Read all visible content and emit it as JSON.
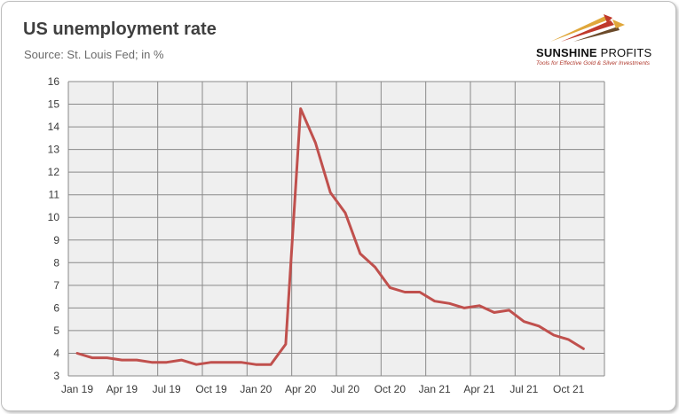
{
  "header": {
    "title": "US unemployment rate",
    "subtitle": "Source: St. Louis Fed; in %"
  },
  "logo": {
    "name_part1": "SUNSHINE",
    "name_part2": "PROFITS",
    "tagline": "Tools for Effective Gold & Silver Investments",
    "colors": {
      "gold": "#e0a73a",
      "red": "#c0392b",
      "dark": "#6b4a2a"
    }
  },
  "colors": {
    "plot_bg": "#efefef",
    "grid": "#8a8a8a",
    "line": "#c0504d"
  },
  "chart_data": {
    "type": "line",
    "title": "US unemployment rate",
    "subtitle": "Source: St. Louis Fed; in %",
    "xlabel": "",
    "ylabel": "",
    "ylim": [
      3,
      16
    ],
    "yticks": [
      3,
      4,
      5,
      6,
      7,
      8,
      9,
      10,
      11,
      12,
      13,
      14,
      15,
      16
    ],
    "grid": true,
    "xtick_labels": [
      "Jan 19",
      "Apr 19",
      "Jul 19",
      "Oct 19",
      "Jan 20",
      "Apr 20",
      "Jul 20",
      "Oct 20",
      "Jan 21",
      "Apr 21",
      "Jul 21",
      "Oct 21"
    ],
    "x": [
      "Jan 19",
      "Feb 19",
      "Mar 19",
      "Apr 19",
      "May 19",
      "Jun 19",
      "Jul 19",
      "Aug 19",
      "Sep 19",
      "Oct 19",
      "Nov 19",
      "Dec 19",
      "Jan 20",
      "Feb 20",
      "Mar 20",
      "Apr 20",
      "May 20",
      "Jun 20",
      "Jul 20",
      "Aug 20",
      "Sep 20",
      "Oct 20",
      "Nov 20",
      "Dec 20",
      "Jan 21",
      "Feb 21",
      "Mar 21",
      "Apr 21",
      "May 21",
      "Jun 21",
      "Jul 21",
      "Aug 21",
      "Sep 21",
      "Oct 21",
      "Nov 21"
    ],
    "series": [
      {
        "values": [
          4.0,
          3.8,
          3.8,
          3.7,
          3.7,
          3.6,
          3.6,
          3.7,
          3.5,
          3.6,
          3.6,
          3.6,
          3.5,
          3.5,
          4.4,
          14.8,
          13.3,
          11.1,
          10.2,
          8.4,
          7.8,
          6.9,
          6.7,
          6.7,
          6.3,
          6.2,
          6.0,
          6.1,
          5.8,
          5.9,
          5.4,
          5.2,
          4.8,
          4.6,
          4.2
        ]
      }
    ]
  }
}
